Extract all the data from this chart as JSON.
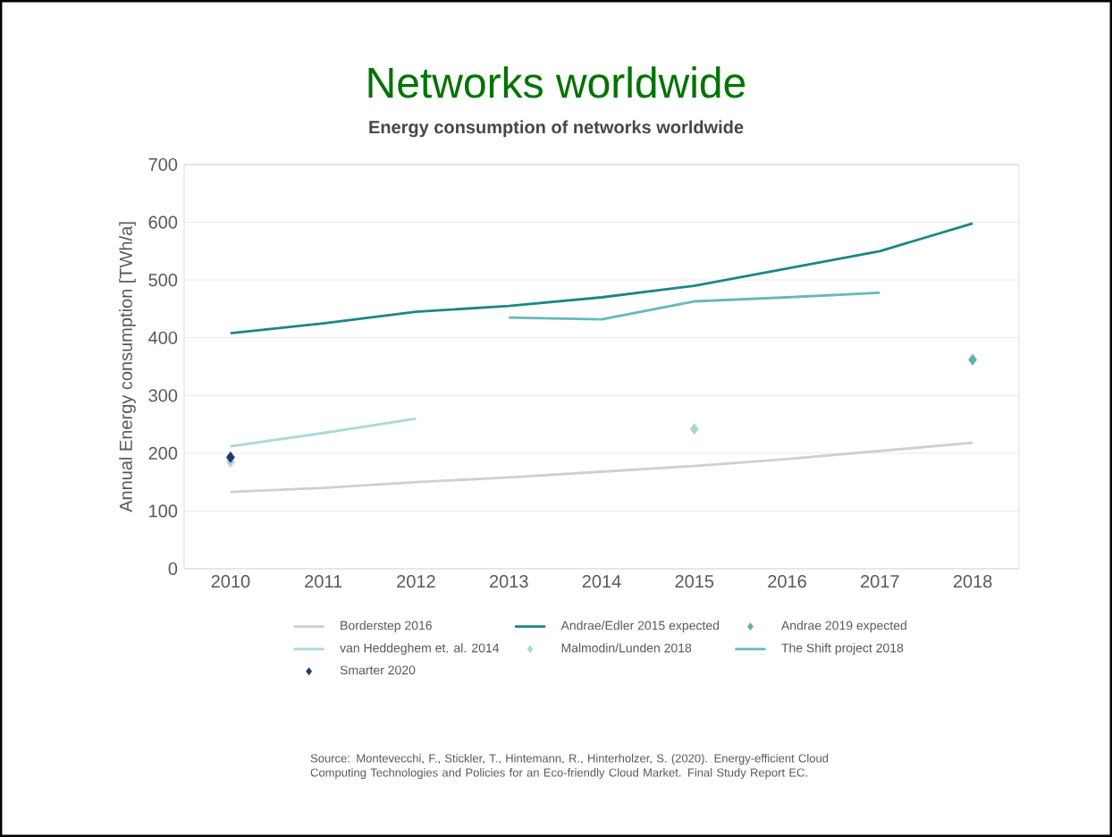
{
  "chart_data": {
    "type": "line",
    "title": "Networks worldwide",
    "subtitle": "Energy consumption of networks worldwide",
    "ylabel": "Annual Energy consumption [TWh/a]",
    "categories": [
      "2010",
      "2011",
      "2012",
      "2013",
      "2014",
      "2015",
      "2016",
      "2017",
      "2018"
    ],
    "series": [
      {
        "name": "Borderstep 2016",
        "color": "#d0cfcf",
        "values": [
          133,
          140,
          150,
          158,
          168,
          178,
          190,
          204,
          218
        ]
      },
      {
        "name": "Andrae/Edler 2015 expected",
        "color": "#1e8585",
        "values": [
          408,
          425,
          445,
          455,
          470,
          490,
          520,
          550,
          598
        ]
      },
      {
        "name": "Andrae 2019 expected",
        "type": "scatter",
        "marker": "diamond",
        "color": "#5fb0b0",
        "values": [
          null,
          null,
          null,
          null,
          null,
          null,
          null,
          null,
          362
        ]
      },
      {
        "name": "van Heddeghem et. al. 2014",
        "color": "#acd9d9",
        "values": [
          212,
          235,
          260,
          null,
          null,
          null,
          null,
          null,
          null
        ]
      },
      {
        "name": "Malmodin/Lunden 2018",
        "type": "scatter",
        "marker": "diamond",
        "color": "#a9d6d6",
        "values": [
          185,
          null,
          null,
          null,
          null,
          242,
          null,
          null,
          null
        ]
      },
      {
        "name": "The Shift project 2018",
        "color": "#69b8b8",
        "values": [
          null,
          null,
          null,
          435,
          432,
          463,
          470,
          478,
          null
        ]
      },
      {
        "name": "Smarter 2020",
        "type": "scatter",
        "marker": "diamond",
        "color": "#1f3a72",
        "values": [
          193,
          null,
          null,
          null,
          null,
          null,
          null,
          null,
          null
        ]
      }
    ],
    "ylim": [
      0,
      700
    ],
    "yticks": [
      0,
      100,
      200,
      300,
      400,
      500,
      600,
      700
    ],
    "grid": "y",
    "legend": "bottom",
    "annotations": [
      "Source: Montevecchi, F., Stickler, T., Hintemann, R., Hinterholzer, S. (2020). Energy-efficient Cloud Computing Technologies and Policies for an Eco-friendly Cloud Market. Final Study Report EC."
    ]
  }
}
